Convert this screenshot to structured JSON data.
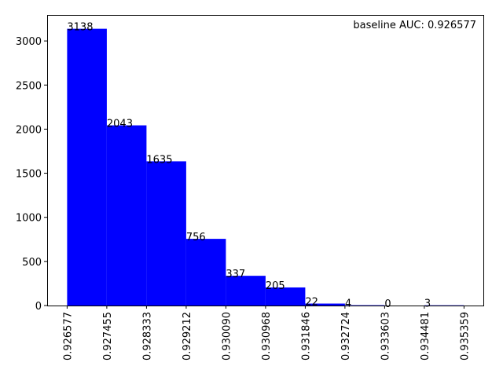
{
  "chart_data": {
    "type": "bar",
    "title": "",
    "xlabel": "",
    "ylabel": "",
    "annotation": "baseline AUC: 0.926577",
    "bin_edges": [
      "0.926577",
      "0.927455",
      "0.928333",
      "0.929212",
      "0.930090",
      "0.930968",
      "0.931846",
      "0.932724",
      "0.933603",
      "0.934481",
      "0.935359"
    ],
    "values": [
      3138,
      2043,
      1635,
      756,
      337,
      205,
      22,
      4,
      0,
      3
    ],
    "bar_color": "#0000ff",
    "yticks": [
      0,
      500,
      1000,
      1500,
      2000,
      2500,
      3000
    ],
    "ylim": [
      0,
      3295
    ],
    "grid": false,
    "legend": false
  }
}
